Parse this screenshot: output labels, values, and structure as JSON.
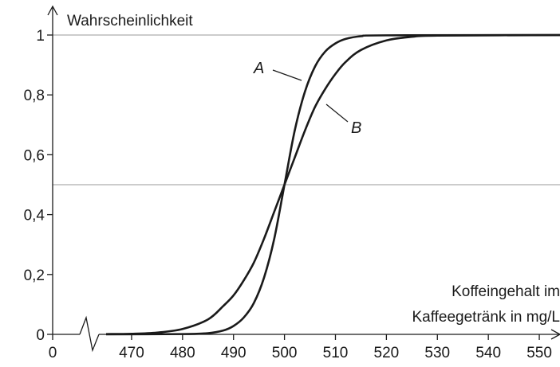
{
  "chart_data": {
    "type": "line",
    "title": "",
    "ylabel": "Wahrscheinlichkeit",
    "xlabel_lines": [
      "Koffeingehalt im",
      "Kaffeegetränk in mg/L"
    ],
    "x_axis_break": true,
    "x_origin_label": "0",
    "x_ticks": [
      470,
      480,
      490,
      500,
      510,
      520,
      530,
      540,
      550
    ],
    "x_tick_labels": [
      "470",
      "480",
      "490",
      "500",
      "510",
      "520",
      "530",
      "540",
      "550"
    ],
    "y_ticks": [
      0,
      0.2,
      0.4,
      0.6,
      0.8,
      1
    ],
    "y_tick_labels": [
      "0",
      "0,2",
      "0,4",
      "0,6",
      "0,8",
      "1"
    ],
    "xlim": [
      465,
      555
    ],
    "ylim": [
      0,
      1
    ],
    "reference_lines_y": [
      0.5,
      1
    ],
    "series": [
      {
        "name": "A",
        "x": [
          465,
          480,
          485,
          488,
          490,
          492,
          494,
          496,
          498,
          500,
          502,
          504,
          506,
          508,
          510,
          512,
          515,
          520,
          555
        ],
        "values": [
          0,
          0.001,
          0.004,
          0.013,
          0.028,
          0.056,
          0.105,
          0.19,
          0.32,
          0.5,
          0.68,
          0.81,
          0.895,
          0.945,
          0.972,
          0.987,
          0.996,
          0.999,
          1
        ]
      },
      {
        "name": "B",
        "x": [
          465,
          470,
          475,
          480,
          485,
          488,
          490,
          492,
          494,
          496,
          498,
          500,
          502,
          504,
          506,
          508,
          510,
          512,
          515,
          520,
          525,
          530,
          555
        ],
        "values": [
          0.001,
          0.002,
          0.006,
          0.018,
          0.05,
          0.095,
          0.13,
          0.18,
          0.24,
          0.32,
          0.41,
          0.5,
          0.59,
          0.68,
          0.76,
          0.82,
          0.87,
          0.91,
          0.95,
          0.982,
          0.994,
          0.998,
          1
        ]
      }
    ],
    "curve_labels": [
      "A",
      "B"
    ],
    "line_color": "#1a1a1a",
    "reference_line_color": "#9a9a9a"
  }
}
